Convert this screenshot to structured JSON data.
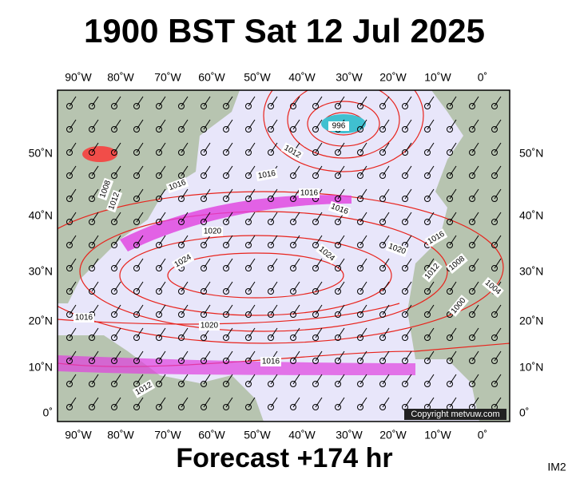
{
  "title": "1900 BST Sat 12 Jul 2025",
  "longitude_labels": [
    "90˚W",
    "80˚W",
    "70˚W",
    "60˚W",
    "50˚W",
    "40˚W",
    "30˚W",
    "20˚W",
    "10˚W",
    "0˚"
  ],
  "latitude_labels": [
    "50˚N",
    "40˚N",
    "30˚N",
    "20˚N",
    "10˚N",
    "0˚"
  ],
  "isobar_labels": [
    "996",
    "1012",
    "1016",
    "1016",
    "1016",
    "1016",
    "1008",
    "1012",
    "1020",
    "1024",
    "1024",
    "1020",
    "1016",
    "1008",
    "1012",
    "1000",
    "1004",
    "1016",
    "1020",
    "1016",
    "1012"
  ],
  "copyright": "Copyright metvuw.com",
  "footer": "Forecast +174 hr",
  "image_id": "IM2"
}
